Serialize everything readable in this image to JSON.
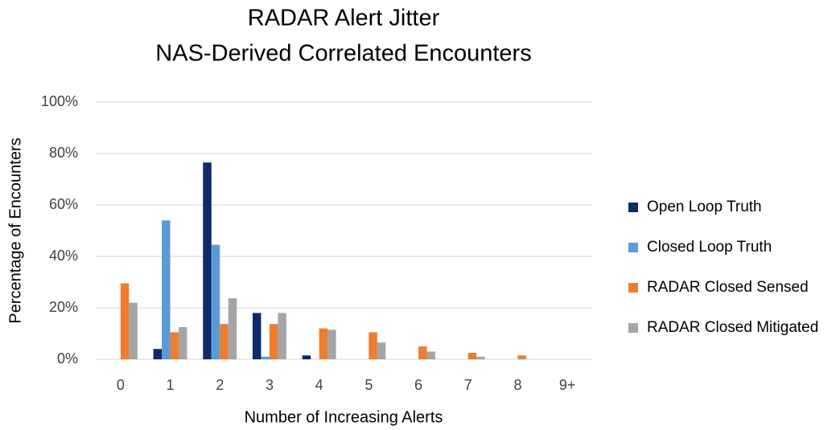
{
  "chart_data": {
    "type": "bar",
    "title": "RADAR Alert Jitter",
    "subtitle": "NAS-Derived Correlated Encounters",
    "x_label": "Number of Increasing Alerts",
    "y_label": "Percentage of Encounters",
    "categories": [
      "0",
      "1",
      "2",
      "3",
      "4",
      "5",
      "6",
      "7",
      "8",
      "9+"
    ],
    "series": [
      {
        "name": "Open Loop Truth",
        "color": "#0e2a6b",
        "values": [
          0,
          4,
          76.5,
          18,
          1.5,
          0,
          0,
          0,
          0,
          0
        ]
      },
      {
        "name": "Closed Loop Truth",
        "color": "#5b9bd5",
        "values": [
          0,
          54,
          44.5,
          1,
          0,
          0,
          0,
          0,
          0,
          0
        ]
      },
      {
        "name": "RADAR Closed Sensed",
        "color": "#ed7d31",
        "values": [
          29.5,
          10.5,
          13.7,
          13.7,
          12,
          10.5,
          5,
          2.5,
          1.5,
          0
        ]
      },
      {
        "name": "RADAR Closed Mitigated",
        "color": "#a5a5a5",
        "values": [
          22,
          12.5,
          23.7,
          18,
          11.5,
          6.5,
          3,
          1,
          0,
          0
        ]
      }
    ],
    "ylim": [
      0,
      100
    ],
    "yticks": [
      {
        "value": 0,
        "label": "0%"
      },
      {
        "value": 20,
        "label": "20%"
      },
      {
        "value": 40,
        "label": "40%"
      },
      {
        "value": 60,
        "label": "60%"
      },
      {
        "value": 80,
        "label": "80%"
      },
      {
        "value": 100,
        "label": "100%"
      }
    ],
    "grid": true,
    "legend": "right"
  }
}
